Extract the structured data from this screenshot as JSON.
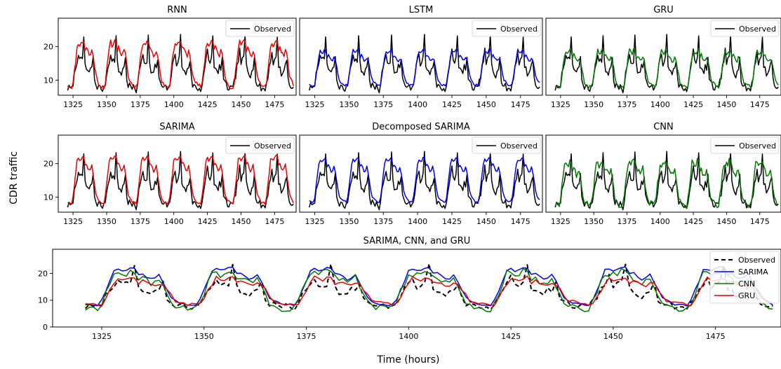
{
  "figure": {
    "ylabel": "CDR traffic",
    "xlabel": "Time (hours)"
  },
  "colors": {
    "observed": "#000000",
    "RNN": "#ee0000",
    "LSTM": "#0000ee",
    "GRU": "#007700",
    "SARIMA": "#ee0000",
    "Decomposed SARIMA": "#0000ee",
    "CNN": "#007700",
    "combo_SARIMA": "#0000ee",
    "combo_CNN": "#007700",
    "combo_GRU": "#ee0000"
  },
  "chart_data": [
    {
      "type": "line",
      "title": "RNN",
      "x_start": 1321,
      "x_end": 1489,
      "xlim": [
        1314,
        1491
      ],
      "ylim": [
        5.5,
        28.5
      ],
      "xticks": [
        1325,
        1350,
        1375,
        1400,
        1425,
        1450,
        1475
      ],
      "yticks": [
        10,
        20
      ],
      "legend": "upper-right",
      "series": [
        {
          "name": "Observed",
          "role": "observed"
        },
        {
          "role": "pred",
          "color_key": "RNN"
        }
      ]
    },
    {
      "type": "line",
      "title": "LSTM",
      "x_start": 1321,
      "x_end": 1489,
      "xlim": [
        1314,
        1491
      ],
      "ylim": [
        5.5,
        28.5
      ],
      "xticks": [
        1325,
        1350,
        1375,
        1400,
        1425,
        1450,
        1475
      ],
      "yticks": [],
      "legend": "upper-right",
      "series": [
        {
          "name": "Observed",
          "role": "observed"
        },
        {
          "role": "pred",
          "color_key": "LSTM"
        }
      ]
    },
    {
      "type": "line",
      "title": "GRU",
      "x_start": 1321,
      "x_end": 1489,
      "xlim": [
        1314,
        1491
      ],
      "ylim": [
        5.5,
        28.5
      ],
      "xticks": [
        1325,
        1350,
        1375,
        1400,
        1425,
        1450,
        1475
      ],
      "yticks": [],
      "legend": "upper-right",
      "series": [
        {
          "name": "Observed",
          "role": "observed"
        },
        {
          "role": "pred",
          "color_key": "GRU"
        }
      ]
    },
    {
      "type": "line",
      "title": "SARIMA",
      "x_start": 1321,
      "x_end": 1489,
      "xlim": [
        1314,
        1491
      ],
      "ylim": [
        5.5,
        28.5
      ],
      "xticks": [
        1325,
        1350,
        1375,
        1400,
        1425,
        1450,
        1475
      ],
      "yticks": [
        10,
        20
      ],
      "legend": "upper-right",
      "series": [
        {
          "name": "Observed",
          "role": "observed"
        },
        {
          "role": "pred",
          "color_key": "SARIMA"
        }
      ]
    },
    {
      "type": "line",
      "title": "Decomposed SARIMA",
      "x_start": 1321,
      "x_end": 1489,
      "xlim": [
        1314,
        1491
      ],
      "ylim": [
        5.5,
        28.5
      ],
      "xticks": [
        1325,
        1350,
        1375,
        1400,
        1425,
        1450,
        1475
      ],
      "yticks": [],
      "legend": "upper-right",
      "series": [
        {
          "name": "Observed",
          "role": "observed"
        },
        {
          "role": "pred",
          "color_key": "Decomposed SARIMA"
        }
      ]
    },
    {
      "type": "line",
      "title": "CNN",
      "x_start": 1321,
      "x_end": 1489,
      "xlim": [
        1314,
        1491
      ],
      "ylim": [
        5.5,
        28.5
      ],
      "xticks": [
        1325,
        1350,
        1375,
        1400,
        1425,
        1450,
        1475
      ],
      "yticks": [],
      "legend": "upper-right",
      "series": [
        {
          "name": "Observed",
          "role": "observed"
        },
        {
          "role": "pred",
          "color_key": "CNN"
        }
      ]
    },
    {
      "type": "line",
      "title": "SARIMA, CNN, and GRU",
      "x_start": 1321,
      "x_end": 1489,
      "xlim": [
        1313,
        1491
      ],
      "ylim": [
        0,
        29
      ],
      "xticks": [
        1325,
        1350,
        1375,
        1400,
        1425,
        1450,
        1475
      ],
      "yticks": [
        0,
        10,
        20
      ],
      "legend": "upper-right",
      "series": [
        {
          "name": "Observed",
          "role": "observed",
          "dashed": true
        },
        {
          "name": "SARIMA",
          "role": "pred",
          "color_key": "combo_SARIMA"
        },
        {
          "name": "CNN",
          "role": "pred",
          "color_key": "combo_CNN"
        },
        {
          "name": "GRU",
          "role": "pred",
          "color_key": "combo_GRU"
        }
      ]
    }
  ]
}
